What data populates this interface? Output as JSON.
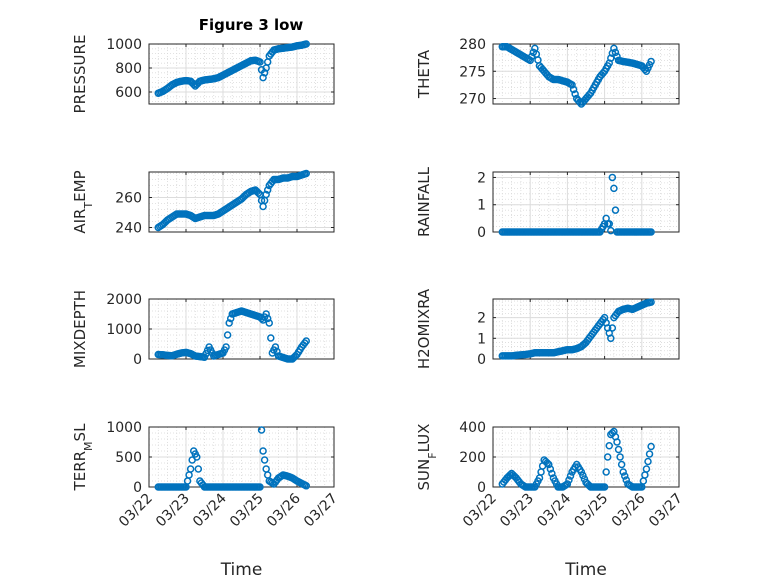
{
  "figure_title": "Figure 3 low",
  "chart_data": [
    {
      "type": "scatter",
      "ylabel": "PRESSURE",
      "ylim": [
        500,
        1000
      ],
      "yticks": [
        600,
        800,
        1000
      ],
      "xlabel": "",
      "xlim": [
        "03/22",
        "03/27"
      ],
      "x": [
        "03/22 06:00",
        "03/22 09:00",
        "03/22 12:00",
        "03/22 15:00",
        "03/22 18:00",
        "03/22 21:00",
        "03/23 00:00",
        "03/23 03:00",
        "03/23 06:00",
        "03/23 09:00",
        "03/23 12:00",
        "03/23 15:00",
        "03/23 18:00",
        "03/23 21:00",
        "03/24 00:00",
        "03/24 03:00",
        "03/24 06:00",
        "03/24 09:00",
        "03/24 12:00",
        "03/24 15:00",
        "03/24 18:00",
        "03/24 21:00",
        "03/25 00:00",
        "03/25 02:00",
        "03/25 04:00",
        "03/25 06:00",
        "03/25 09:00",
        "03/25 12:00",
        "03/25 15:00",
        "03/25 18:00",
        "03/25 21:00",
        "03/26 00:00",
        "03/26 03:00",
        "03/26 06:00"
      ],
      "y": [
        590,
        605,
        630,
        660,
        680,
        690,
        695,
        690,
        650,
        690,
        700,
        705,
        710,
        720,
        740,
        760,
        780,
        800,
        820,
        840,
        860,
        865,
        850,
        720,
        800,
        900,
        950,
        960,
        965,
        970,
        975,
        985,
        990,
        1000
      ]
    },
    {
      "type": "scatter",
      "ylabel": "THETA",
      "ylim": [
        269,
        280
      ],
      "yticks": [
        270,
        275,
        280
      ],
      "xlabel": "",
      "xlim": [
        "03/22",
        "03/27"
      ],
      "x": [
        "03/22 06:00",
        "03/22 09:00",
        "03/22 12:00",
        "03/22 15:00",
        "03/22 18:00",
        "03/22 21:00",
        "03/23 00:00",
        "03/23 03:00",
        "03/23 06:00",
        "03/23 09:00",
        "03/23 12:00",
        "03/23 15:00",
        "03/23 18:00",
        "03/24 00:00",
        "03/24 03:00",
        "03/24 06:00",
        "03/24 09:00",
        "03/24 12:00",
        "03/24 15:00",
        "03/24 18:00",
        "03/24 21:00",
        "03/25 00:00",
        "03/25 03:00",
        "03/25 06:00",
        "03/25 09:00",
        "03/25 12:00",
        "03/25 18:00",
        "03/26 00:00",
        "03/26 03:00",
        "03/26 06:00"
      ],
      "y": [
        279.5,
        279.5,
        279,
        278.5,
        278,
        277.5,
        277,
        279.2,
        276,
        275,
        274,
        273.5,
        273.5,
        273,
        272.5,
        270,
        269,
        270,
        271,
        272.5,
        274,
        275,
        276.5,
        279.2,
        277,
        276.8,
        276.5,
        276,
        275,
        276.8
      ]
    },
    {
      "type": "scatter",
      "ylabel": "AIR_TEMP",
      "ylim": [
        237,
        277
      ],
      "yticks": [
        240,
        260
      ],
      "xlabel": "",
      "xlim": [
        "03/22",
        "03/27"
      ],
      "x": [
        "03/22 06:00",
        "03/22 09:00",
        "03/22 12:00",
        "03/22 15:00",
        "03/22 18:00",
        "03/22 21:00",
        "03/23 00:00",
        "03/23 03:00",
        "03/23 06:00",
        "03/23 09:00",
        "03/23 12:00",
        "03/23 15:00",
        "03/23 18:00",
        "03/23 21:00",
        "03/24 00:00",
        "03/24 03:00",
        "03/24 06:00",
        "03/24 09:00",
        "03/24 12:00",
        "03/24 15:00",
        "03/24 18:00",
        "03/24 21:00",
        "03/25 00:00",
        "03/25 02:00",
        "03/25 04:00",
        "03/25 06:00",
        "03/25 09:00",
        "03/25 12:00",
        "03/25 15:00",
        "03/25 18:00",
        "03/25 21:00",
        "03/26 00:00",
        "03/26 03:00",
        "03/26 06:00"
      ],
      "y": [
        240,
        242,
        245,
        247,
        249,
        249,
        249,
        248,
        246,
        247,
        248,
        248,
        248,
        249,
        251,
        253,
        255,
        257,
        259,
        262,
        264,
        265,
        262,
        254,
        262,
        268,
        272,
        272,
        273,
        273,
        274,
        274,
        275,
        276
      ]
    },
    {
      "type": "scatter",
      "ylabel": "RAINFALL",
      "ylim": [
        0,
        2.2
      ],
      "yticks": [
        0,
        1,
        2
      ],
      "xlabel": "",
      "xlim": [
        "03/22",
        "03/27"
      ],
      "x": [
        "03/22 06:00",
        "03/22 12:00",
        "03/22 18:00",
        "03/23 00:00",
        "03/23 06:00",
        "03/23 12:00",
        "03/23 18:00",
        "03/24 00:00",
        "03/24 06:00",
        "03/24 12:00",
        "03/24 18:00",
        "03/24 21:00",
        "03/25 00:00",
        "03/25 01:00",
        "03/25 02:00",
        "03/25 03:00",
        "03/25 04:00",
        "03/25 05:00",
        "03/25 06:00",
        "03/25 08:00",
        "03/25 12:00",
        "03/25 18:00",
        "03/26 00:00",
        "03/26 06:00"
      ],
      "y": [
        0,
        0,
        0,
        0,
        0,
        0,
        0,
        0,
        0,
        0,
        0,
        0,
        0.3,
        0.5,
        0.3,
        0.3,
        0.05,
        2.0,
        1.6,
        0,
        0,
        0,
        0,
        0
      ]
    },
    {
      "type": "scatter",
      "ylabel": "MIXDEPTH",
      "ylim": [
        0,
        2000
      ],
      "yticks": [
        0,
        1000,
        2000
      ],
      "xlabel": "",
      "xlim": [
        "03/22",
        "03/27"
      ],
      "x": [
        "03/22 06:00",
        "03/22 09:00",
        "03/22 12:00",
        "03/22 15:00",
        "03/22 18:00",
        "03/22 21:00",
        "03/23 00:00",
        "03/23 03:00",
        "03/23 06:00",
        "03/23 09:00",
        "03/23 12:00",
        "03/23 15:00",
        "03/23 18:00",
        "03/23 21:00",
        "03/24 00:00",
        "03/24 02:00",
        "03/24 04:00",
        "03/24 06:00",
        "03/24 09:00",
        "03/24 12:00",
        "03/24 15:00",
        "03/24 18:00",
        "03/24 21:00",
        "03/25 00:00",
        "03/25 02:00",
        "03/25 04:00",
        "03/25 06:00",
        "03/25 08:00",
        "03/25 10:00",
        "03/25 12:00",
        "03/25 15:00",
        "03/25 18:00",
        "03/25 21:00",
        "03/26 00:00",
        "03/26 03:00",
        "03/26 06:00"
      ],
      "y": [
        150,
        140,
        120,
        110,
        160,
        200,
        220,
        180,
        100,
        80,
        60,
        400,
        100,
        150,
        200,
        400,
        1200,
        1500,
        1550,
        1600,
        1550,
        1500,
        1450,
        1400,
        1300,
        1500,
        1200,
        200,
        400,
        100,
        50,
        0,
        0,
        150,
        400,
        600
      ]
    },
    {
      "type": "scatter",
      "ylabel": "H2OMIXRA",
      "ylim": [
        0,
        2.9
      ],
      "yticks": [
        0,
        1,
        2
      ],
      "xlabel": "",
      "xlim": [
        "03/22",
        "03/27"
      ],
      "x": [
        "03/22 06:00",
        "03/22 09:00",
        "03/22 12:00",
        "03/22 15:00",
        "03/22 18:00",
        "03/22 21:00",
        "03/23 00:00",
        "03/23 03:00",
        "03/23 06:00",
        "03/23 09:00",
        "03/23 12:00",
        "03/23 15:00",
        "03/23 18:00",
        "03/23 21:00",
        "03/24 00:00",
        "03/24 03:00",
        "03/24 06:00",
        "03/24 09:00",
        "03/24 12:00",
        "03/24 15:00",
        "03/24 18:00",
        "03/24 21:00",
        "03/25 00:00",
        "03/25 02:00",
        "03/25 04:00",
        "03/25 06:00",
        "03/25 09:00",
        "03/25 12:00",
        "03/25 15:00",
        "03/25 18:00",
        "03/25 21:00",
        "03/26 00:00",
        "03/26 03:00",
        "03/26 06:00"
      ],
      "y": [
        0.15,
        0.15,
        0.15,
        0.18,
        0.2,
        0.22,
        0.25,
        0.3,
        0.3,
        0.3,
        0.3,
        0.3,
        0.35,
        0.4,
        0.45,
        0.45,
        0.5,
        0.6,
        0.8,
        1.1,
        1.4,
        1.7,
        2.0,
        1.5,
        1.0,
        2.0,
        2.3,
        2.4,
        2.45,
        2.4,
        2.5,
        2.6,
        2.7,
        2.75
      ]
    },
    {
      "type": "scatter",
      "ylabel": "TERR_MSL",
      "ylim": [
        0,
        1000
      ],
      "yticks": [
        0,
        500,
        1000
      ],
      "xlabel": "Time",
      "xlim": [
        "03/22",
        "03/27"
      ],
      "xticks": [
        "03/22",
        "03/23",
        "03/24",
        "03/25",
        "03/26",
        "03/27"
      ],
      "x": [
        "03/22 06:00",
        "03/22 12:00",
        "03/22 18:00",
        "03/23 00:00",
        "03/23 03:00",
        "03/23 05:00",
        "03/23 07:00",
        "03/23 09:00",
        "03/23 12:00",
        "03/23 18:00",
        "03/24 00:00",
        "03/24 06:00",
        "03/24 12:00",
        "03/24 18:00",
        "03/24 21:00",
        "03/25 00:00",
        "03/25 01:00",
        "03/25 02:00",
        "03/25 04:00",
        "03/25 06:00",
        "03/25 09:00",
        "03/25 12:00",
        "03/25 15:00",
        "03/25 18:00",
        "03/25 21:00",
        "03/26 00:00",
        "03/26 03:00",
        "03/26 06:00"
      ],
      "y": [
        0,
        0,
        0,
        0,
        300,
        600,
        500,
        100,
        0,
        0,
        0,
        0,
        0,
        0,
        0,
        0,
        950,
        600,
        300,
        100,
        50,
        150,
        200,
        180,
        150,
        100,
        60,
        20
      ]
    },
    {
      "type": "scatter",
      "ylabel": "SUN_FLUX",
      "ylim": [
        0,
        400
      ],
      "yticks": [
        0,
        200,
        400
      ],
      "xlabel": "Time",
      "xlim": [
        "03/22",
        "03/27"
      ],
      "xticks": [
        "03/22",
        "03/23",
        "03/24",
        "03/25",
        "03/26",
        "03/27"
      ],
      "x": [
        "03/22 06:00",
        "03/22 09:00",
        "03/22 12:00",
        "03/22 15:00",
        "03/22 18:00",
        "03/22 21:00",
        "03/23 00:00",
        "03/23 03:00",
        "03/23 06:00",
        "03/23 09:00",
        "03/23 12:00",
        "03/23 15:00",
        "03/23 18:00",
        "03/23 21:00",
        "03/24 00:00",
        "03/24 03:00",
        "03/24 06:00",
        "03/24 09:00",
        "03/24 12:00",
        "03/24 15:00",
        "03/24 18:00",
        "03/24 21:00",
        "03/25 00:00",
        "03/25 02:00",
        "03/25 04:00",
        "03/25 06:00",
        "03/25 08:00",
        "03/25 10:00",
        "03/25 12:00",
        "03/25 15:00",
        "03/25 18:00",
        "03/25 21:00",
        "03/26 00:00",
        "03/26 03:00",
        "03/26 06:00"
      ],
      "y": [
        20,
        60,
        90,
        60,
        20,
        0,
        0,
        0,
        60,
        180,
        150,
        60,
        0,
        0,
        20,
        100,
        150,
        100,
        30,
        0,
        0,
        0,
        0,
        200,
        350,
        370,
        300,
        200,
        100,
        20,
        0,
        0,
        0,
        120,
        270
      ]
    }
  ]
}
